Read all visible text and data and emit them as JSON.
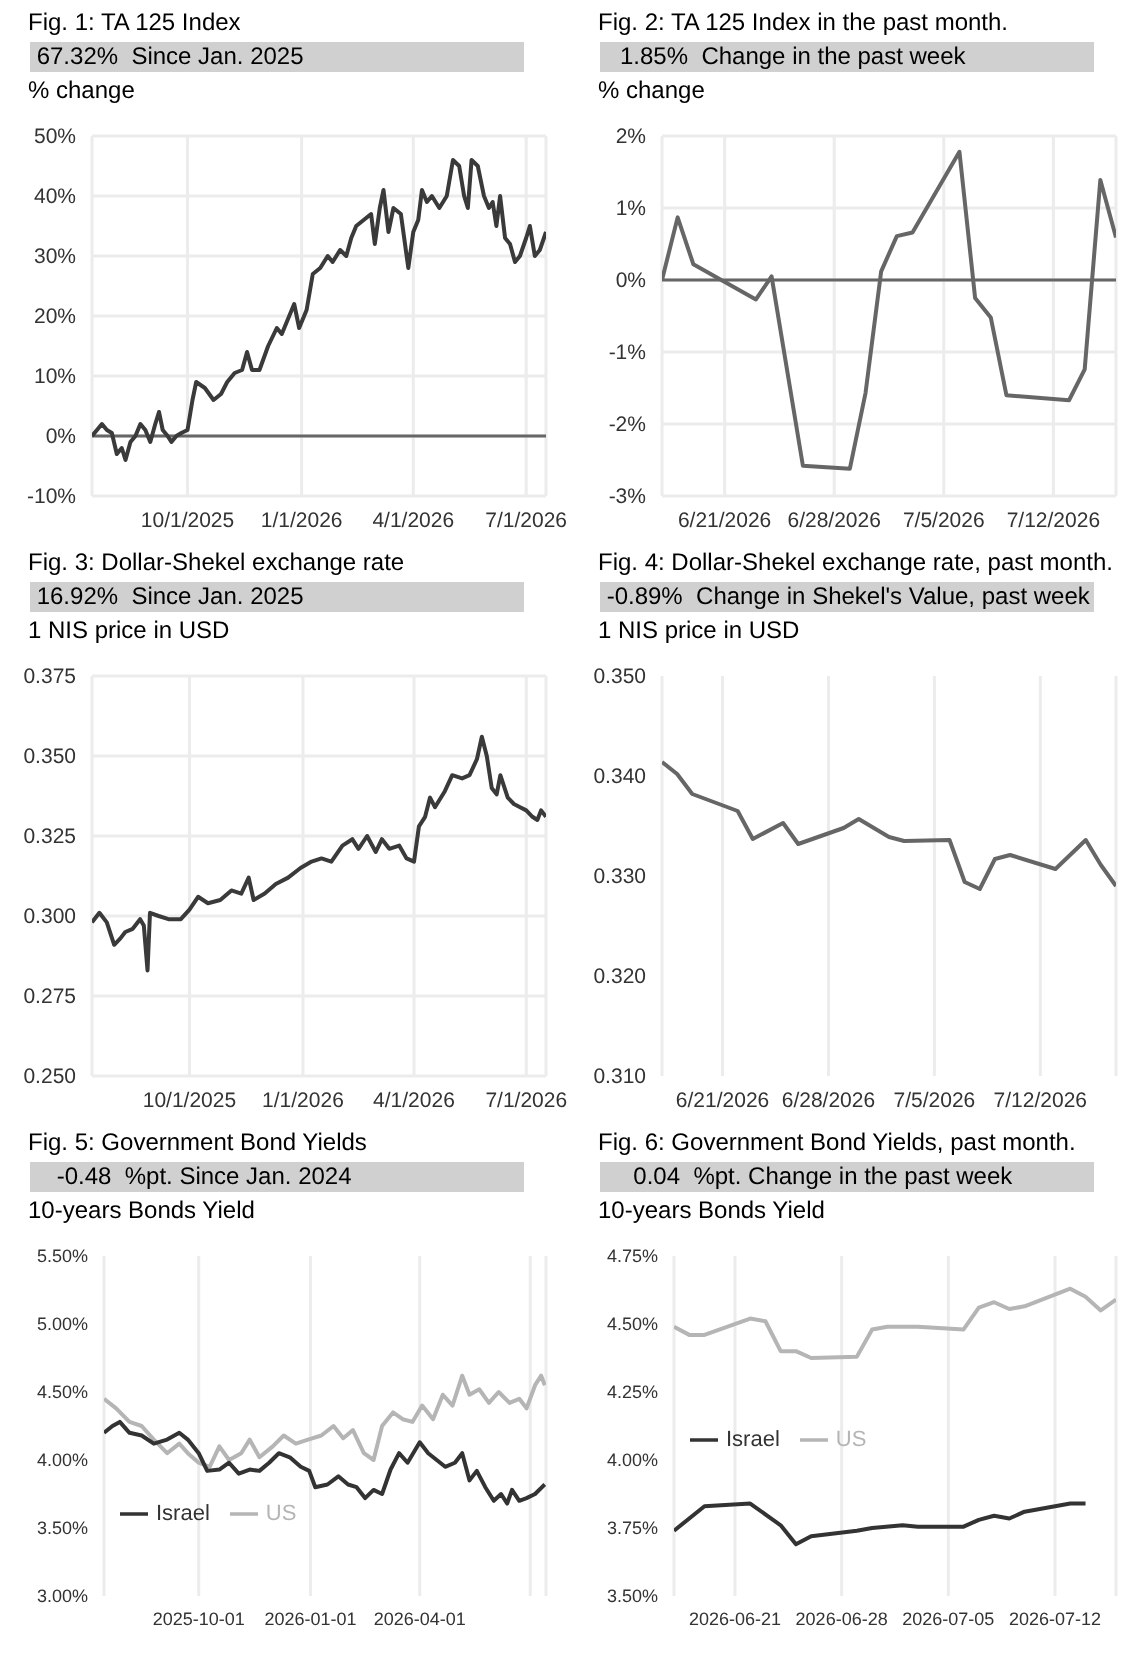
{
  "chart_data": [
    {
      "type": "line",
      "title": "Fig. 1: TA 125 Index",
      "subtitle": " 67.32%  Since Jan. 2025",
      "ylabel": "% change",
      "grid": true,
      "marker": "none",
      "line_style": "solid",
      "xlim": [
        "2025-07-16",
        "2026-07-17"
      ],
      "xticks": [
        {
          "value": "2025-10-01",
          "label": "10/1/2025"
        },
        {
          "value": "2026-01-01",
          "label": "1/1/2026"
        },
        {
          "value": "2026-04-01",
          "label": "4/1/2026"
        },
        {
          "value": "2026-07-01",
          "label": "7/1/2026"
        }
      ],
      "ylim": [
        -10,
        50
      ],
      "yticks": [
        {
          "value": -10,
          "label": "-10%"
        },
        {
          "value": 0,
          "label": "0%"
        },
        {
          "value": 10,
          "label": "10%"
        },
        {
          "value": 20,
          "label": "20%"
        },
        {
          "value": 30,
          "label": "30%"
        },
        {
          "value": 40,
          "label": "40%"
        },
        {
          "value": 50,
          "label": "50%"
        }
      ],
      "ref_lines": [
        {
          "axis": "y",
          "value": 0,
          "color": "#666666"
        }
      ],
      "series": [
        {
          "color": "#3a3a3a",
          "x": [
            "2025-07-16",
            "2025-07-20",
            "2025-07-24",
            "2025-07-28",
            "2025-08-01",
            "2025-08-05",
            "2025-08-09",
            "2025-08-12",
            "2025-08-16",
            "2025-08-20",
            "2025-08-24",
            "2025-08-28",
            "2025-09-01",
            "2025-09-05",
            "2025-09-08",
            "2025-09-11",
            "2025-09-15",
            "2025-09-18",
            "2025-09-22",
            "2025-09-26",
            "2025-10-01",
            "2025-10-05",
            "2025-10-08",
            "2025-10-15",
            "2025-10-22",
            "2025-10-28",
            "2025-11-02",
            "2025-11-08",
            "2025-11-14",
            "2025-11-18",
            "2025-11-22",
            "2025-11-28",
            "2025-12-05",
            "2025-12-12",
            "2025-12-16",
            "2025-12-22",
            "2025-12-26",
            "2025-12-30",
            "2026-01-05",
            "2026-01-10",
            "2026-01-16",
            "2026-01-22",
            "2026-01-26",
            "2026-02-01",
            "2026-02-06",
            "2026-02-10",
            "2026-02-14",
            "2026-02-20",
            "2026-02-26",
            "2026-03-01",
            "2026-03-05",
            "2026-03-08",
            "2026-03-12",
            "2026-03-16",
            "2026-03-22",
            "2026-03-28",
            "2026-04-01",
            "2026-04-05",
            "2026-04-08",
            "2026-04-12",
            "2026-04-16",
            "2026-04-22",
            "2026-04-28",
            "2026-05-03",
            "2026-05-08",
            "2026-05-12",
            "2026-05-15",
            "2026-05-18",
            "2026-05-23",
            "2026-05-28",
            "2026-06-01",
            "2026-06-04",
            "2026-06-07",
            "2026-06-10",
            "2026-06-14",
            "2026-06-18",
            "2026-06-22",
            "2026-06-26",
            "2026-07-01",
            "2026-07-04",
            "2026-07-08",
            "2026-07-12",
            "2026-07-17"
          ],
          "values": [
            0,
            1,
            2,
            1,
            0.5,
            -3,
            -2,
            -4,
            -1,
            0,
            2,
            1,
            -1,
            2,
            4,
            1,
            0,
            -1,
            0,
            0.5,
            1,
            6,
            9,
            8,
            6,
            7,
            9,
            10.5,
            11,
            14,
            11,
            11,
            15,
            18,
            17,
            20,
            22,
            18,
            21,
            27,
            28,
            30,
            29,
            31,
            30,
            33,
            35,
            36,
            37,
            32,
            38,
            41,
            34,
            38,
            37,
            28,
            34,
            36,
            41,
            39,
            40,
            38,
            40,
            46,
            45,
            40,
            38,
            46,
            45,
            40,
            38,
            39,
            35,
            40,
            33,
            32,
            29,
            30,
            33,
            35,
            30,
            31,
            34
          ]
        }
      ]
    },
    {
      "type": "line",
      "title": "Fig. 2: TA 125 Index in the past month.",
      "subtitle": "   1.85%  Change in the past week",
      "ylabel": "% change",
      "grid": true,
      "marker": "none",
      "line_style": "solid",
      "xlim": [
        "2026-06-17",
        "2026-07-16"
      ],
      "xticks": [
        {
          "value": "2026-06-21",
          "label": "6/21/2026"
        },
        {
          "value": "2026-06-28",
          "label": "6/28/2026"
        },
        {
          "value": "2026-07-05",
          "label": "7/5/2026"
        },
        {
          "value": "2026-07-12",
          "label": "7/12/2026"
        }
      ],
      "ylim": [
        -3,
        2
      ],
      "yticks": [
        {
          "value": -3,
          "label": "-3%"
        },
        {
          "value": -2,
          "label": "-2%"
        },
        {
          "value": -1,
          "label": "-1%"
        },
        {
          "value": 0,
          "label": "0%"
        },
        {
          "value": 1,
          "label": "1%"
        },
        {
          "value": 2,
          "label": "2%"
        }
      ],
      "ref_lines": [
        {
          "axis": "y",
          "value": 0,
          "color": "#666666"
        }
      ],
      "series": [
        {
          "color": "#666666",
          "x": [
            "2026-06-17",
            "2026-06-18",
            "2026-06-19",
            "2026-06-23",
            "2026-06-24",
            "2026-06-26",
            "2026-06-29",
            "2026-06-30",
            "2026-07-01",
            "2026-07-02",
            "2026-07-03",
            "2026-07-06",
            "2026-07-07",
            "2026-07-08",
            "2026-07-09",
            "2026-07-13",
            "2026-07-14",
            "2026-07-15",
            "2026-07-16"
          ],
          "values": [
            0,
            0.87,
            0.22,
            -0.27,
            0.05,
            -2.58,
            -2.62,
            -1.57,
            0.12,
            0.61,
            0.66,
            1.78,
            -0.25,
            -0.52,
            -1.6,
            -1.67,
            -1.24,
            1.39,
            0.59
          ]
        }
      ]
    },
    {
      "type": "line",
      "title": "Fig. 3: Dollar-Shekel exchange rate",
      "subtitle": " 16.92%  Since Jan. 2025",
      "ylabel": "1 NIS price in USD",
      "grid": true,
      "marker": "none",
      "line_style": "solid",
      "xlim": [
        "2025-07-14",
        "2026-07-17"
      ],
      "xticks": [
        {
          "value": "2025-10-01",
          "label": "10/1/2025"
        },
        {
          "value": "2026-01-01",
          "label": "1/1/2026"
        },
        {
          "value": "2026-04-01",
          "label": "4/1/2026"
        },
        {
          "value": "2026-07-01",
          "label": "7/1/2026"
        }
      ],
      "ylim": [
        0.25,
        0.375
      ],
      "yticks": [
        {
          "value": 0.25,
          "label": "0.250"
        },
        {
          "value": 0.275,
          "label": "0.275"
        },
        {
          "value": 0.3,
          "label": "0.300"
        },
        {
          "value": 0.325,
          "label": "0.325"
        },
        {
          "value": 0.35,
          "label": "0.350"
        },
        {
          "value": 0.375,
          "label": "0.375"
        }
      ],
      "series": [
        {
          "color": "#3a3a3a",
          "x": [
            "2025-07-14",
            "2025-07-20",
            "2025-07-26",
            "2025-08-01",
            "2025-08-06",
            "2025-08-10",
            "2025-08-16",
            "2025-08-22",
            "2025-08-25",
            "2025-08-28",
            "2025-08-30",
            "2025-09-06",
            "2025-09-14",
            "2025-09-24",
            "2025-10-01",
            "2025-10-08",
            "2025-10-16",
            "2025-10-26",
            "2025-11-04",
            "2025-11-12",
            "2025-11-18",
            "2025-11-22",
            "2025-12-01",
            "2025-12-10",
            "2025-12-20",
            "2025-12-30",
            "2026-01-08",
            "2026-01-16",
            "2026-01-24",
            "2026-02-02",
            "2026-02-10",
            "2026-02-15",
            "2026-02-22",
            "2026-03-01",
            "2026-03-06",
            "2026-03-12",
            "2026-03-20",
            "2026-03-26",
            "2026-04-01",
            "2026-04-05",
            "2026-04-10",
            "2026-04-14",
            "2026-04-18",
            "2026-04-26",
            "2026-05-02",
            "2026-05-10",
            "2026-05-16",
            "2026-05-22",
            "2026-05-26",
            "2026-05-30",
            "2026-06-03",
            "2026-06-07",
            "2026-06-10",
            "2026-06-16",
            "2026-06-21",
            "2026-06-26",
            "2026-07-01",
            "2026-07-06",
            "2026-07-10",
            "2026-07-13",
            "2026-07-17"
          ],
          "values": [
            0.298,
            0.301,
            0.298,
            0.291,
            0.293,
            0.295,
            0.296,
            0.299,
            0.297,
            0.283,
            0.301,
            0.3,
            0.299,
            0.299,
            0.302,
            0.306,
            0.304,
            0.305,
            0.308,
            0.307,
            0.312,
            0.305,
            0.307,
            0.31,
            0.312,
            0.315,
            0.317,
            0.318,
            0.317,
            0.322,
            0.324,
            0.321,
            0.325,
            0.32,
            0.324,
            0.321,
            0.322,
            0.318,
            0.317,
            0.328,
            0.331,
            0.337,
            0.334,
            0.339,
            0.344,
            0.343,
            0.344,
            0.349,
            0.356,
            0.35,
            0.34,
            0.338,
            0.344,
            0.337,
            0.335,
            0.334,
            0.333,
            0.331,
            0.33,
            0.333,
            0.331
          ]
        }
      ]
    },
    {
      "type": "line",
      "title": "Fig. 4: Dollar-Shekel exchange rate, past month.",
      "subtitle": " -0.89%  Change in Shekel's Value, past week",
      "ylabel": "1 NIS price in USD",
      "grid": "x",
      "marker": "none",
      "line_style": "solid",
      "xlim": [
        "2026-06-17",
        "2026-07-17"
      ],
      "xticks": [
        {
          "value": "2026-06-21",
          "label": "6/21/2026"
        },
        {
          "value": "2026-06-28",
          "label": "6/28/2026"
        },
        {
          "value": "2026-07-05",
          "label": "7/5/2026"
        },
        {
          "value": "2026-07-12",
          "label": "7/12/2026"
        }
      ],
      "ylim": [
        0.31,
        0.35
      ],
      "yticks": [
        {
          "value": 0.31,
          "label": "0.310"
        },
        {
          "value": 0.32,
          "label": "0.320"
        },
        {
          "value": 0.33,
          "label": "0.330"
        },
        {
          "value": 0.34,
          "label": "0.340"
        },
        {
          "value": 0.35,
          "label": "0.350"
        }
      ],
      "series": [
        {
          "color": "#666666",
          "x": [
            "2026-06-17",
            "2026-06-18",
            "2026-06-19",
            "2026-06-22",
            "2026-06-23",
            "2026-06-25",
            "2026-06-26",
            "2026-06-29",
            "2026-06-30",
            "2026-07-02",
            "2026-07-03",
            "2026-07-06",
            "2026-07-07",
            "2026-07-08",
            "2026-07-09",
            "2026-07-10",
            "2026-07-13",
            "2026-07-15",
            "2026-07-16",
            "2026-07-17"
          ],
          "values": [
            0.3414,
            0.3402,
            0.3382,
            0.3365,
            0.3337,
            0.3353,
            0.3332,
            0.3348,
            0.3357,
            0.3339,
            0.3335,
            0.3336,
            0.3294,
            0.3287,
            0.3317,
            0.3321,
            0.3307,
            0.3336,
            0.3311,
            0.329
          ]
        }
      ]
    },
    {
      "type": "line",
      "title": "Fig. 5: Government Bond Yields",
      "subtitle": "    -0.48  %pt. Since Jan. 2024",
      "ylabel": "10-years Bonds Yield",
      "grid": "x",
      "marker": "none",
      "line_style": "solid",
      "legend": "bottom left",
      "xlim": [
        "2025-07-15",
        "2026-07-14"
      ],
      "xticks": [
        {
          "value": "2025-10-01",
          "label": "2025-10-01"
        },
        {
          "value": "2026-01-01",
          "label": "2026-01-01"
        },
        {
          "value": "2026-04-01",
          "label": "2026-04-01"
        },
        {
          "value": "2026-07-01",
          "label": null
        }
      ],
      "ylim": [
        3,
        5.5
      ],
      "yticks": [
        {
          "value": 3,
          "label": "3.00%"
        },
        {
          "value": 3.5,
          "label": "3.50%"
        },
        {
          "value": 4,
          "label": "4.00%"
        },
        {
          "value": 4.5,
          "label": "4.50%"
        },
        {
          "value": 5,
          "label": "5.00%"
        },
        {
          "value": 5.5,
          "label": "5.50%"
        }
      ],
      "series": [
        {
          "name": "US",
          "color": "#b5b5b5",
          "x": [
            "2025-07-15",
            "2025-07-25",
            "2025-08-05",
            "2025-08-15",
            "2025-08-25",
            "2025-09-05",
            "2025-09-15",
            "2025-09-22",
            "2025-10-01",
            "2025-10-10",
            "2025-10-18",
            "2025-10-26",
            "2025-11-05",
            "2025-11-12",
            "2025-11-20",
            "2025-12-01",
            "2025-12-10",
            "2025-12-20",
            "2025-12-30",
            "2026-01-10",
            "2026-01-20",
            "2026-01-28",
            "2026-02-05",
            "2026-02-14",
            "2026-02-22",
            "2026-03-01",
            "2026-03-10",
            "2026-03-18",
            "2026-03-26",
            "2026-04-03",
            "2026-04-12",
            "2026-04-20",
            "2026-04-28",
            "2026-05-06",
            "2026-05-12",
            "2026-05-20",
            "2026-05-28",
            "2026-06-05",
            "2026-06-14",
            "2026-06-22",
            "2026-06-28",
            "2026-07-05",
            "2026-07-10",
            "2026-07-13"
          ],
          "values": [
            4.45,
            4.38,
            4.28,
            4.25,
            4.15,
            4.05,
            4.12,
            4.05,
            3.98,
            3.95,
            4.1,
            4.0,
            4.05,
            4.15,
            4.02,
            4.1,
            4.18,
            4.12,
            4.15,
            4.18,
            4.25,
            4.16,
            4.22,
            4.05,
            4.0,
            4.25,
            4.35,
            4.3,
            4.28,
            4.4,
            4.3,
            4.48,
            4.4,
            4.62,
            4.48,
            4.52,
            4.42,
            4.5,
            4.42,
            4.45,
            4.38,
            4.55,
            4.62,
            4.55
          ]
        },
        {
          "name": "Israel",
          "color": "#333333",
          "x": [
            "2025-07-15",
            "2025-07-22",
            "2025-07-28",
            "2025-08-05",
            "2025-08-15",
            "2025-08-25",
            "2025-09-05",
            "2025-09-15",
            "2025-09-22",
            "2025-10-01",
            "2025-10-08",
            "2025-10-18",
            "2025-10-26",
            "2025-11-03",
            "2025-11-12",
            "2025-11-20",
            "2025-11-28",
            "2025-12-06",
            "2025-12-15",
            "2025-12-24",
            "2025-12-31",
            "2026-01-05",
            "2026-01-15",
            "2026-01-24",
            "2026-02-01",
            "2026-02-08",
            "2026-02-15",
            "2026-02-22",
            "2026-03-01",
            "2026-03-08",
            "2026-03-15",
            "2026-03-22",
            "2026-04-01",
            "2026-04-08",
            "2026-04-15",
            "2026-04-22",
            "2026-04-30",
            "2026-05-06",
            "2026-05-12",
            "2026-05-18",
            "2026-05-25",
            "2026-06-01",
            "2026-06-07",
            "2026-06-12",
            "2026-06-16",
            "2026-06-22",
            "2026-06-28",
            "2026-07-05",
            "2026-07-13"
          ],
          "values": [
            4.2,
            4.25,
            4.28,
            4.2,
            4.18,
            4.12,
            4.15,
            4.2,
            4.15,
            4.05,
            3.92,
            3.93,
            3.98,
            3.9,
            3.93,
            3.92,
            3.98,
            4.05,
            4.02,
            3.95,
            3.92,
            3.8,
            3.82,
            3.88,
            3.82,
            3.8,
            3.72,
            3.78,
            3.75,
            3.93,
            4.05,
            3.98,
            4.13,
            4.05,
            4.0,
            3.95,
            3.98,
            4.05,
            3.85,
            3.92,
            3.8,
            3.7,
            3.75,
            3.68,
            3.78,
            3.7,
            3.72,
            3.75,
            3.82
          ]
        }
      ]
    },
    {
      "type": "line",
      "title": "Fig. 6: Government Bond Yields, past month.",
      "subtitle": "     0.04  %pt. Change in the past week",
      "ylabel": "10-years Bonds Yield",
      "grid": "x",
      "marker": "none",
      "line_style": "solid",
      "legend": "left",
      "xlim": [
        "2026-06-17",
        "2026-07-16"
      ],
      "xticks": [
        {
          "value": "2026-06-21",
          "label": "2026-06-21"
        },
        {
          "value": "2026-06-28",
          "label": "2026-06-28"
        },
        {
          "value": "2026-07-05",
          "label": "2026-07-05"
        },
        {
          "value": "2026-07-12",
          "label": "2026-07-12"
        }
      ],
      "ylim": [
        3.5,
        4.75
      ],
      "yticks": [
        {
          "value": 3.5,
          "label": "3.50%"
        },
        {
          "value": 3.75,
          "label": "3.75%"
        },
        {
          "value": 4,
          "label": "4.00%"
        },
        {
          "value": 4.25,
          "label": "4.25%"
        },
        {
          "value": 4.5,
          "label": "4.50%"
        },
        {
          "value": 4.75,
          "label": "4.75%"
        }
      ],
      "series": [
        {
          "name": "US",
          "color": "#b5b5b5",
          "x": [
            "2026-06-17",
            "2026-06-18",
            "2026-06-19",
            "2026-06-22",
            "2026-06-23",
            "2026-06-24",
            "2026-06-25",
            "2026-06-26",
            "2026-06-29",
            "2026-06-30",
            "2026-07-01",
            "2026-07-02",
            "2026-07-03",
            "2026-07-06",
            "2026-07-07",
            "2026-07-08",
            "2026-07-09",
            "2026-07-10",
            "2026-07-13",
            "2026-07-14",
            "2026-07-15",
            "2026-07-16"
          ],
          "values": [
            4.49,
            4.46,
            4.46,
            4.52,
            4.51,
            4.4,
            4.4,
            4.375,
            4.38,
            4.48,
            4.49,
            4.49,
            4.49,
            4.48,
            4.56,
            4.58,
            4.555,
            4.565,
            4.63,
            4.6,
            4.55,
            4.59
          ]
        },
        {
          "name": "Israel",
          "color": "#333333",
          "x": [
            "2026-06-17",
            "2026-06-19",
            "2026-06-22",
            "2026-06-24",
            "2026-06-25",
            "2026-06-26",
            "2026-06-29",
            "2026-06-30",
            "2026-07-02",
            "2026-07-03",
            "2026-07-06",
            "2026-07-07",
            "2026-07-08",
            "2026-07-09",
            "2026-07-10",
            "2026-07-13",
            "2026-07-14"
          ],
          "values": [
            3.74,
            3.83,
            3.84,
            3.76,
            3.69,
            3.72,
            3.74,
            3.75,
            3.76,
            3.755,
            3.755,
            3.78,
            3.795,
            3.785,
            3.81,
            3.84,
            3.84
          ]
        }
      ]
    }
  ]
}
